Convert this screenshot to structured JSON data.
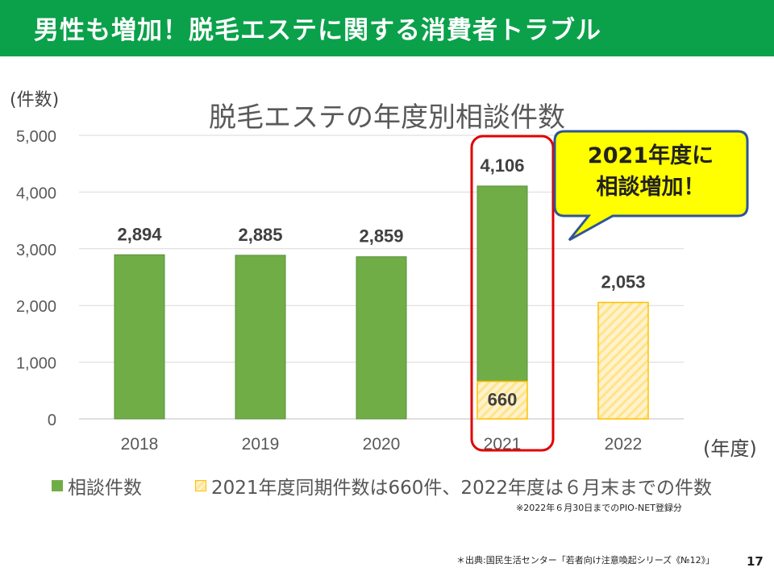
{
  "header": {
    "title": "男性も増加！脱毛エステに関する消費者トラブル"
  },
  "unit_label": "(件数)",
  "axis_unit": "(年度)",
  "callout": {
    "line1": "2021年度に",
    "line2": "相談増加！"
  },
  "legend": {
    "item1": "相談件数",
    "item2": "2021年度同期件数は660件、2022年度は６月末までの件数"
  },
  "footnote": "※2022年６月30日までのPIO-NET登録分",
  "source": "＊出典:国民生活センター「若者向け注意喚起シリーズ《№12》」",
  "page_number": "17",
  "colors": {
    "banner": "#0aa14a",
    "bar": "#70ad47",
    "partial_fill": "#fff2cc",
    "partial_border": "#ffc000",
    "highlight": "#e00000",
    "callout_fill": "#ffff00",
    "callout_border": "#2f5597"
  },
  "chart_data": {
    "type": "bar",
    "title": "脱毛エステの年度別相談件数",
    "ylabel": "(件数)",
    "xlabel": "(年度)",
    "ylim": [
      0,
      5000
    ],
    "yticks": [
      "0",
      "1,000",
      "2,000",
      "3,000",
      "4,000",
      "5,000"
    ],
    "categories": [
      "2018",
      "2019",
      "2020",
      "2021",
      "2022"
    ],
    "grid": true,
    "legend_position": "bottom",
    "series": [
      {
        "name": "相談件数",
        "values": [
          2894,
          2885,
          2859,
          4106,
          null
        ],
        "labels": [
          "2,894",
          "2,885",
          "2,859",
          "4,106",
          ""
        ]
      },
      {
        "name": "2021年度同期件数は660件、2022年度は６月末までの件数",
        "values": [
          null,
          null,
          null,
          660,
          2053
        ],
        "labels": [
          "",
          "",
          "",
          "660",
          "2,053"
        ]
      }
    ]
  }
}
